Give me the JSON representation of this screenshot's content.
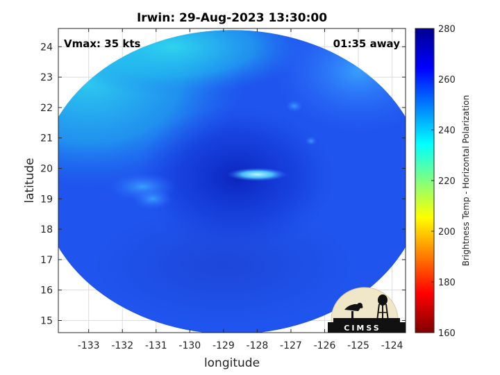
{
  "chart_data": {
    "type": "heatmap",
    "title": "Irwin: 29-Aug-2023 13:30:00",
    "xlabel": "longitude",
    "ylabel": "latitude",
    "xlim": [
      -133.9,
      -123.6
    ],
    "ylim": [
      14.6,
      24.6
    ],
    "x_ticks": [
      -133,
      -132,
      -131,
      -130,
      -129,
      -128,
      -127,
      -126,
      -125,
      -124
    ],
    "y_ticks": [
      15,
      16,
      17,
      18,
      19,
      20,
      21,
      22,
      23,
      24
    ],
    "grid": true,
    "annotations": {
      "vmax": "Vmax: 35 kts",
      "time_offset": "01:35 away"
    },
    "colorbar": {
      "label": "Brightness Temp - Horizontal Polarization",
      "range": [
        160,
        280
      ],
      "ticks": [
        160,
        180,
        200,
        220,
        240,
        260,
        280
      ],
      "colormap": [
        "#800000",
        "#ff0000",
        "#ffff00",
        "#00ffff",
        "#0000ff",
        "#00008f"
      ]
    },
    "swath": {
      "center_lon": -128.75,
      "center_lat": 19.55,
      "radius_lon": 5.7,
      "radius_lat": 5.0
    },
    "field": {
      "background_temp": 262,
      "features": [
        {
          "name": "northwest cloud band",
          "lon": -133.0,
          "lat": 23.5,
          "temp": 238
        },
        {
          "name": "north outer band",
          "lon": -130.5,
          "lat": 23.5,
          "temp": 244
        },
        {
          "name": "warm core",
          "lon": -128.3,
          "lat": 19.9,
          "temp": 268
        },
        {
          "name": "eyewall bright spot",
          "lon": -128.0,
          "lat": 19.8,
          "temp": 240
        },
        {
          "name": "west rainband",
          "lon": -131.0,
          "lat": 19.2,
          "temp": 248
        },
        {
          "name": "small convective cell",
          "lon": -126.9,
          "lat": 22.0,
          "temp": 248
        }
      ]
    }
  },
  "logo": {
    "text": "CIMSS",
    "name": "CIMSS logo"
  }
}
